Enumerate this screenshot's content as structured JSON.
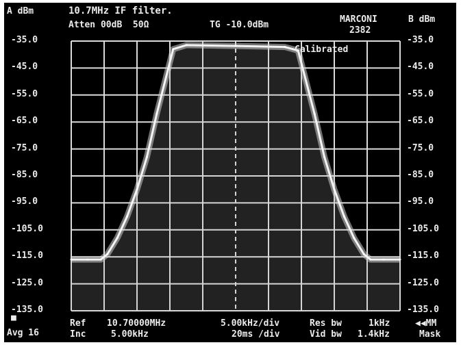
{
  "header": {
    "channel_a_unit": "A dBm",
    "title": "10.7MHz IF filter.",
    "brand": "MARCONI",
    "model": "2382",
    "channel_b_unit": "B dBm",
    "atten": "Atten 00dB  50Ω",
    "tg": "TG -10.0dBm",
    "calibrated": "Calibrated"
  },
  "footer": {
    "marker_box": "■",
    "avg": "Avg 16",
    "ref_label": "Ref",
    "ref_value": "10.70000MHz",
    "inc_label": "Inc",
    "inc_value": "5.00kHz",
    "span_div": "5.00kHz/div",
    "time_div": "20ms /div",
    "res_bw_label": "Res bw",
    "res_bw_value": "1kHz",
    "vid_bw_label": "Vid bw",
    "vid_bw_value": "1.4kHz",
    "mode_top": "◀◀MM",
    "mode_bottom": "Mask"
  },
  "chart_data": {
    "type": "line",
    "title": "10.7MHz IF filter.",
    "xlabel": "",
    "ylabel": "dBm",
    "y_ticks_left": [
      "-35.0",
      "-45.0",
      "-55.0",
      "-65.0",
      "-75.0",
      "-85.0",
      "-95.0",
      "-105.0",
      "-115.0",
      "-125.0",
      "-135.0"
    ],
    "y_ticks_right": [
      "-35.0",
      "-45.0",
      "-55.0",
      "-65.0",
      "-75.0",
      "-85.0",
      "-95.0",
      "-105.0",
      "-115.0",
      "-125.0",
      "-135.0"
    ],
    "ylim": [
      -135,
      -35
    ],
    "x_divisions": 10,
    "x_div_khz": 5.0,
    "center_mhz": 10.7,
    "grid": true,
    "center_line": "dashed",
    "series": [
      {
        "x_div": [
          0,
          0.5,
          0.9,
          1.1,
          1.4,
          1.7,
          2.0,
          2.3,
          2.6,
          3.1,
          3.5,
          5.0,
          6.5,
          6.9,
          7.4,
          7.7,
          8.0,
          8.3,
          8.6,
          8.9,
          9.1,
          9.5,
          10
        ],
        "y": [
          -116,
          -116,
          -116,
          -114,
          -108,
          -100,
          -90,
          -78,
          -62,
          -38,
          -36.5,
          -36.8,
          -37.2,
          -38.5,
          -62,
          -78,
          -90,
          -100,
          -108,
          -114,
          -116,
          -116,
          -116
        ]
      }
    ]
  }
}
